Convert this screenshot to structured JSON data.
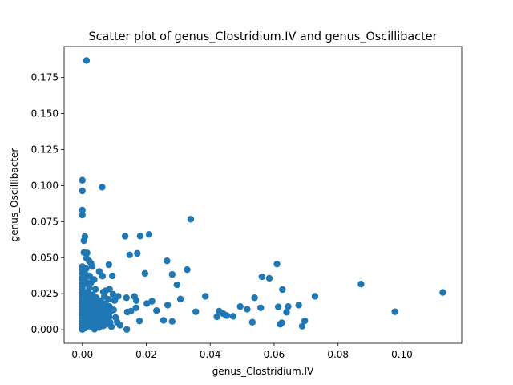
{
  "chart_data": {
    "type": "scatter",
    "title": "Scatter plot of genus_Clostridium.IV and genus_Oscillibacter",
    "xlabel": "genus_Clostridium.IV",
    "ylabel": "genus_Oscillibacter",
    "xlim": [
      -0.0057,
      0.1187
    ],
    "ylim": [
      -0.0094,
      0.1965
    ],
    "xticks": [
      0.0,
      0.02,
      0.04,
      0.06,
      0.08,
      0.1
    ],
    "xtick_labels": [
      "0.00",
      "0.02",
      "0.04",
      "0.06",
      "0.08",
      "0.10"
    ],
    "yticks": [
      0.0,
      0.025,
      0.05,
      0.075,
      0.1,
      0.125,
      0.15,
      0.175
    ],
    "ytick_labels": [
      "0.000",
      "0.025",
      "0.050",
      "0.075",
      "0.100",
      "0.125",
      "0.150",
      "0.175"
    ],
    "grid": false,
    "marker_color": "#1f77b4",
    "points": [
      [
        0.0013,
        0.1868
      ],
      [
        0.0,
        0.1037
      ],
      [
        0.0,
        0.0963
      ],
      [
        0.0062,
        0.0989
      ],
      [
        0.0,
        0.083
      ],
      [
        0.0,
        0.0796
      ],
      [
        0.0339,
        0.0767
      ],
      [
        0.0008,
        0.0646
      ],
      [
        0.0005,
        0.0618
      ],
      [
        0.0134,
        0.0649
      ],
      [
        0.0181,
        0.065
      ],
      [
        0.0209,
        0.0661
      ],
      [
        0.0005,
        0.0536
      ],
      [
        0.0015,
        0.0533
      ],
      [
        0.0148,
        0.0519
      ],
      [
        0.0172,
        0.053
      ],
      [
        0.0013,
        0.0497
      ],
      [
        0.0021,
        0.0478
      ],
      [
        0.0027,
        0.0461
      ],
      [
        0.0031,
        0.0439
      ],
      [
        0.0,
        0.0438
      ],
      [
        0.0,
        0.0415
      ],
      [
        0.0012,
        0.0424
      ],
      [
        0.0083,
        0.0451
      ],
      [
        0.0265,
        0.0478
      ],
      [
        0.0609,
        0.0456
      ],
      [
        0.0,
        0.0391
      ],
      [
        0.0,
        0.0362
      ],
      [
        0.0012,
        0.0381
      ],
      [
        0.0023,
        0.0372
      ],
      [
        0.0053,
        0.0404
      ],
      [
        0.0063,
        0.0372
      ],
      [
        0.0094,
        0.0374
      ],
      [
        0.0196,
        0.0391
      ],
      [
        0.0281,
        0.0384
      ],
      [
        0.0328,
        0.0417
      ],
      [
        0.0562,
        0.0368
      ],
      [
        0.0585,
        0.0357
      ],
      [
        0.0,
        0.0348
      ],
      [
        0.0,
        0.0322
      ],
      [
        0.0,
        0.0302
      ],
      [
        0.0,
        0.0281
      ],
      [
        0.001,
        0.0338
      ],
      [
        0.0018,
        0.0315
      ],
      [
        0.0027,
        0.0327
      ],
      [
        0.0037,
        0.0349
      ],
      [
        0.0022,
        0.0291
      ],
      [
        0.0041,
        0.0281
      ],
      [
        0.0066,
        0.0262
      ],
      [
        0.0073,
        0.0271
      ],
      [
        0.0085,
        0.0282
      ],
      [
        0.0296,
        0.0312
      ],
      [
        0.0626,
        0.0279
      ],
      [
        0.0872,
        0.0317
      ],
      [
        0.0,
        0.0259
      ],
      [
        0.0,
        0.0238
      ],
      [
        0.0,
        0.0222
      ],
      [
        0.0,
        0.0201
      ],
      [
        0.0,
        0.0183
      ],
      [
        0.0,
        0.0162
      ],
      [
        0.0,
        0.0141
      ],
      [
        0.0,
        0.012
      ],
      [
        0.0,
        0.0101
      ],
      [
        0.0,
        0.0082
      ],
      [
        0.0,
        0.0061
      ],
      [
        0.0,
        0.0041
      ],
      [
        0.0,
        0.0021
      ],
      [
        0.0,
        0.0002
      ],
      [
        0.0008,
        0.0244
      ],
      [
        0.0011,
        0.021
      ],
      [
        0.0009,
        0.0178
      ],
      [
        0.0012,
        0.0143
      ],
      [
        0.0014,
        0.0108
      ],
      [
        0.0009,
        0.0072
      ],
      [
        0.0013,
        0.0039
      ],
      [
        0.001,
        0.0012
      ],
      [
        0.0018,
        0.0262
      ],
      [
        0.0021,
        0.0229
      ],
      [
        0.0024,
        0.0193
      ],
      [
        0.0019,
        0.0162
      ],
      [
        0.0023,
        0.0128
      ],
      [
        0.0025,
        0.0093
      ],
      [
        0.0021,
        0.0058
      ],
      [
        0.0027,
        0.0022
      ],
      [
        0.0033,
        0.0242
      ],
      [
        0.0036,
        0.0208
      ],
      [
        0.0031,
        0.0171
      ],
      [
        0.0037,
        0.0135
      ],
      [
        0.0034,
        0.01
      ],
      [
        0.0039,
        0.0064
      ],
      [
        0.0035,
        0.003
      ],
      [
        0.0038,
        0.0004
      ],
      [
        0.0044,
        0.0222
      ],
      [
        0.0047,
        0.0188
      ],
      [
        0.0049,
        0.0153
      ],
      [
        0.0045,
        0.0117
      ],
      [
        0.0051,
        0.0082
      ],
      [
        0.0048,
        0.0047
      ],
      [
        0.0052,
        0.0015
      ],
      [
        0.0057,
        0.0201
      ],
      [
        0.006,
        0.0166
      ],
      [
        0.0062,
        0.0131
      ],
      [
        0.0059,
        0.0096
      ],
      [
        0.0063,
        0.0061
      ],
      [
        0.0066,
        0.0027
      ],
      [
        0.0069,
        0.0231
      ],
      [
        0.0072,
        0.0182
      ],
      [
        0.0075,
        0.0144
      ],
      [
        0.0071,
        0.0109
      ],
      [
        0.0077,
        0.0074
      ],
      [
        0.0074,
        0.0039
      ],
      [
        0.0082,
        0.0211
      ],
      [
        0.0085,
        0.0161
      ],
      [
        0.0088,
        0.0125
      ],
      [
        0.0084,
        0.0088
      ],
      [
        0.0087,
        0.0051
      ],
      [
        0.0091,
        0.0021
      ],
      [
        0.0096,
        0.0246
      ],
      [
        0.0101,
        0.0203
      ],
      [
        0.0098,
        0.0138
      ],
      [
        0.0104,
        0.0085
      ],
      [
        0.0112,
        0.0232
      ],
      [
        0.0109,
        0.0052
      ],
      [
        0.0118,
        0.0031
      ],
      [
        0.0138,
        0.0222
      ],
      [
        0.0141,
        0.0123
      ],
      [
        0.0152,
        0.0129
      ],
      [
        0.0139,
        0.0002
      ],
      [
        0.0163,
        0.0231
      ],
      [
        0.0169,
        0.0203
      ],
      [
        0.0168,
        0.0152
      ],
      [
        0.0179,
        0.0061
      ],
      [
        0.0202,
        0.0182
      ],
      [
        0.0218,
        0.0198
      ],
      [
        0.0232,
        0.0133
      ],
      [
        0.0254,
        0.0065
      ],
      [
        0.0267,
        0.0171
      ],
      [
        0.0281,
        0.0058
      ],
      [
        0.0307,
        0.0213
      ],
      [
        0.0355,
        0.0125
      ],
      [
        0.0385,
        0.0232
      ],
      [
        0.0421,
        0.009
      ],
      [
        0.0428,
        0.0129
      ],
      [
        0.0441,
        0.0111
      ],
      [
        0.0452,
        0.0098
      ],
      [
        0.0472,
        0.0093
      ],
      [
        0.0494,
        0.0161
      ],
      [
        0.0516,
        0.0142
      ],
      [
        0.0532,
        0.0052
      ],
      [
        0.0539,
        0.0222
      ],
      [
        0.0558,
        0.0152
      ],
      [
        0.0613,
        0.0159
      ],
      [
        0.0619,
        0.0038
      ],
      [
        0.0624,
        0.0048
      ],
      [
        0.0639,
        0.0121
      ],
      [
        0.0644,
        0.0161
      ],
      [
        0.0677,
        0.0171
      ],
      [
        0.0688,
        0.0025
      ],
      [
        0.0696,
        0.0062
      ],
      [
        0.0728,
        0.0232
      ],
      [
        0.0978,
        0.0125
      ],
      [
        0.1128,
        0.0259
      ]
    ]
  }
}
